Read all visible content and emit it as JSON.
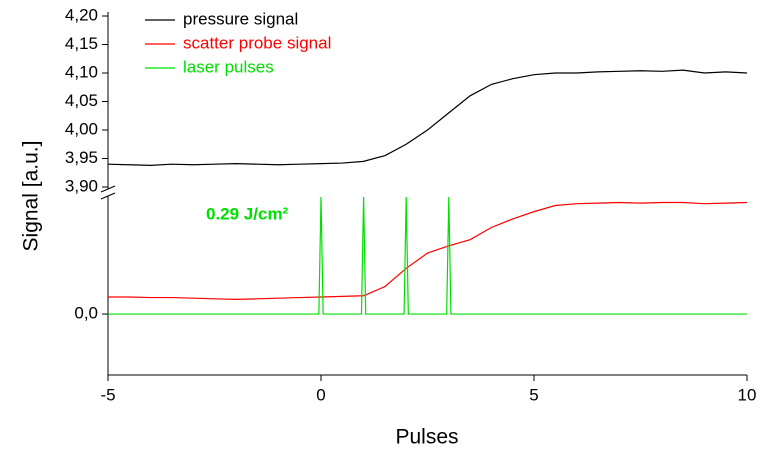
{
  "chart_data": {
    "type": "line",
    "x_label": "Pulses",
    "y_label": "Signal [a.u.]",
    "annotation": "0.29 J/cm²",
    "legend": "upper left",
    "xlim": [
      -5,
      10
    ],
    "xticks": [
      -5,
      0,
      5,
      10
    ],
    "ylim": [
      3.9,
      4.2
    ],
    "yticks": [
      {
        "value": 3.9,
        "label": "3,90"
      },
      {
        "value": 3.95,
        "label": "3,95"
      },
      {
        "value": 4.0,
        "label": "4,00"
      },
      {
        "value": 4.05,
        "label": "4,05"
      },
      {
        "value": 4.1,
        "label": "4,10"
      },
      {
        "value": 4.15,
        "label": "4,15"
      },
      {
        "value": 4.2,
        "label": "4,20"
      }
    ],
    "y2lim": [
      -1,
      1.92
    ],
    "y2ticks": [
      {
        "value": 0,
        "label": "0,0"
      }
    ],
    "series": [
      {
        "name": "pressure signal",
        "color": "#000000",
        "x": [
          -5,
          -4.5,
          -4,
          -3.5,
          -3,
          -2.5,
          -2,
          -1.5,
          -1,
          -0.5,
          0,
          0.5,
          1,
          1.5,
          2,
          2.5,
          3,
          3.5,
          4,
          4.5,
          5,
          5.5,
          6,
          6.5,
          7,
          7.5,
          8,
          8.5,
          9,
          9.5,
          10
        ],
        "values": [
          3.94,
          3.939,
          3.938,
          3.94,
          3.939,
          3.94,
          3.941,
          3.94,
          3.939,
          3.94,
          3.941,
          3.942,
          3.945,
          3.955,
          3.975,
          4.0,
          4.03,
          4.06,
          4.08,
          4.09,
          4.097,
          4.1,
          4.1,
          4.102,
          4.103,
          4.104,
          4.103,
          4.105,
          4.1,
          4.102,
          4.1
        ]
      },
      {
        "name": "scatter probe signal",
        "color": "#ff0000",
        "axis": "y2",
        "x": [
          -5,
          -4.5,
          -4,
          -3.5,
          -3,
          -2.5,
          -2,
          -1.5,
          -1,
          -0.5,
          0,
          0.5,
          1,
          1.5,
          2,
          2.5,
          3,
          3.5,
          4,
          4.5,
          5,
          5.5,
          6,
          6.5,
          7,
          7.5,
          8,
          8.5,
          9,
          9.5,
          10
        ],
        "values": [
          0.28,
          0.28,
          0.27,
          0.27,
          0.26,
          0.25,
          0.24,
          0.25,
          0.26,
          0.27,
          0.28,
          0.29,
          0.3,
          0.45,
          0.75,
          1.0,
          1.12,
          1.22,
          1.42,
          1.56,
          1.68,
          1.78,
          1.81,
          1.82,
          1.83,
          1.82,
          1.83,
          1.83,
          1.81,
          1.82,
          1.83
        ]
      },
      {
        "name": "laser pulses",
        "color": "#00e000",
        "axis": "y2",
        "x": [
          -5,
          -2.5,
          -0.05,
          0,
          0.05,
          0.95,
          1,
          1.05,
          1.95,
          2,
          2.05,
          2.95,
          3,
          3.05,
          5,
          7.5,
          10
        ],
        "values": [
          0,
          0,
          0,
          1.92,
          0,
          0,
          1.92,
          0,
          0,
          1.92,
          0,
          0,
          1.92,
          0,
          0,
          0,
          0
        ]
      }
    ]
  }
}
